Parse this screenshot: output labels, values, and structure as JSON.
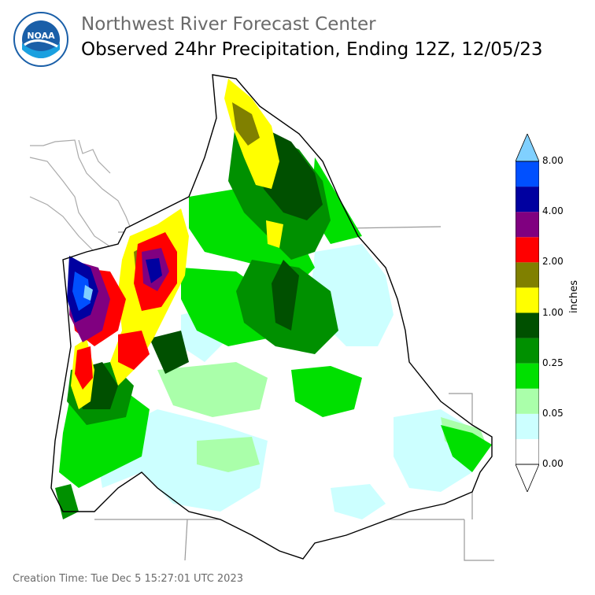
{
  "header": {
    "org": "Northwest River Forecast Center",
    "title": "Observed 24hr Precipitation, Ending 12Z, 12/05/23"
  },
  "logo": {
    "text": "NOAA",
    "icon": "noaa-logo-icon",
    "ring_color": "#1a5fa8",
    "inner_color": "#1aa0e0"
  },
  "legend": {
    "unit": "inches",
    "ticks": [
      "0.00",
      "0.05",
      "0.25",
      "1.00",
      "2.00",
      "4.00",
      "8.00"
    ],
    "colors": [
      "#ffffff",
      "#ccffff",
      "#aaffaa",
      "#00e000",
      "#009000",
      "#005000",
      "#ffff00",
      "#808000",
      "#ff0000",
      "#800080",
      "#0000a0",
      "#0050ff",
      "#80d0ff"
    ]
  },
  "footer": {
    "text": "Creation Time: Tue Dec 5 15:27:01 UTC 2023"
  }
}
